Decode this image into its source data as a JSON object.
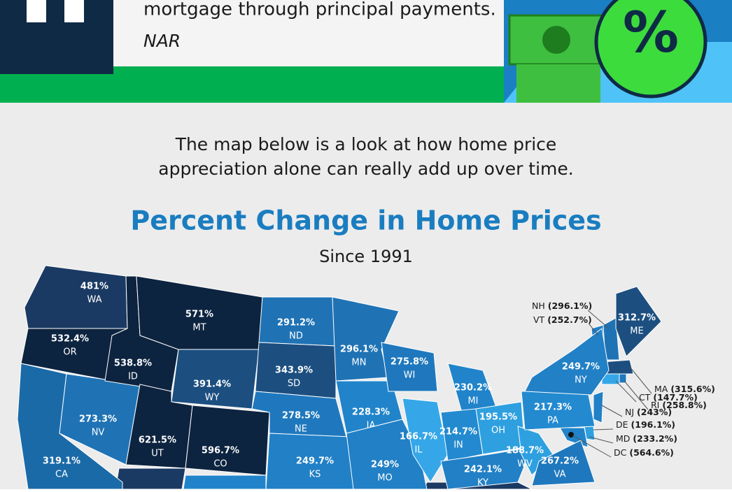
{
  "banner": {
    "quote": "mortgage through principal payments.",
    "source": "NAR",
    "percent_icon": "%"
  },
  "intro": [
    "The map below is a look at how home price",
    "appreciation alone can really add up over time."
  ],
  "map": {
    "title": "Percent Change in Home Prices",
    "subtitle": "Since 1991",
    "states": [
      {
        "abbr": "WA",
        "value": "481%",
        "color": "#1b3a63"
      },
      {
        "abbr": "OR",
        "value": "532.4%",
        "color": "#0d2440"
      },
      {
        "abbr": "CA",
        "value": "319.1%",
        "color": "#1a6aa8"
      },
      {
        "abbr": "NV",
        "value": "273.3%",
        "color": "#1f73b5"
      },
      {
        "abbr": "ID",
        "value": "538.8%",
        "color": "#0d2440"
      },
      {
        "abbr": "MT",
        "value": "571%",
        "color": "#0d2440"
      },
      {
        "abbr": "WY",
        "value": "391.4%",
        "color": "#1c4f80"
      },
      {
        "abbr": "UT",
        "value": "621.5%",
        "color": "#0d2440"
      },
      {
        "abbr": "CO",
        "value": "596.7%",
        "color": "#0d2440"
      },
      {
        "abbr": "ND",
        "value": "291.2%",
        "color": "#1f73b5"
      },
      {
        "abbr": "SD",
        "value": "343.9%",
        "color": "#1c4f80"
      },
      {
        "abbr": "NE",
        "value": "278.5%",
        "color": "#1f78bd"
      },
      {
        "abbr": "KS",
        "value": "249.7%",
        "color": "#2180c6"
      },
      {
        "abbr": "MN",
        "value": "296.1%",
        "color": "#1f73b5"
      },
      {
        "abbr": "IA",
        "value": "228.3%",
        "color": "#2184ca"
      },
      {
        "abbr": "MO",
        "value": "249%",
        "color": "#2180c6"
      },
      {
        "abbr": "WI",
        "value": "275.8%",
        "color": "#1f78bd"
      },
      {
        "abbr": "IL",
        "value": "166.7%",
        "color": "#35a7e8"
      },
      {
        "abbr": "MI",
        "value": "230.2%",
        "color": "#2184ca"
      },
      {
        "abbr": "IN",
        "value": "214.7%",
        "color": "#238ad0"
      },
      {
        "abbr": "OH",
        "value": "195.5%",
        "color": "#2ea0e0"
      },
      {
        "abbr": "KY",
        "value": "242.1%",
        "color": "#2180c6"
      },
      {
        "abbr": "WV",
        "value": "188.7%",
        "color": "#2ea0e0"
      },
      {
        "abbr": "VA",
        "value": "267.2%",
        "color": "#1f78bd"
      },
      {
        "abbr": "PA",
        "value": "217.3%",
        "color": "#238ad0"
      },
      {
        "abbr": "NY",
        "value": "249.7%",
        "color": "#2180c6"
      },
      {
        "abbr": "ME",
        "value": "312.7%",
        "color": "#1c4f80"
      }
    ],
    "callouts": [
      {
        "abbr": "NH",
        "value": "(296.1%)"
      },
      {
        "abbr": "VT",
        "value": "(252.7%)"
      },
      {
        "abbr": "MA",
        "value": "(315.6%)"
      },
      {
        "abbr": "RI",
        "value": "(258.8%)"
      },
      {
        "abbr": "CT",
        "value": "(147.7%)"
      },
      {
        "abbr": "NJ",
        "value": "(243%)"
      },
      {
        "abbr": "DE",
        "value": "(196.1%)"
      },
      {
        "abbr": "MD",
        "value": "(233.2%)"
      },
      {
        "abbr": "DC",
        "value": "(564.6%)"
      }
    ]
  }
}
